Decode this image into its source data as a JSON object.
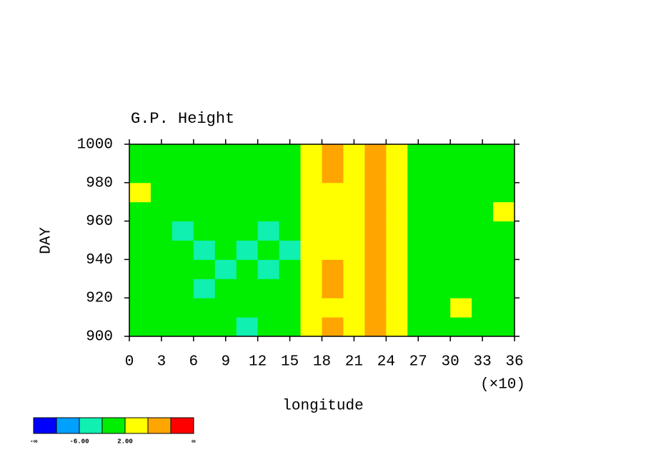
{
  "chart_data": {
    "type": "heatmap",
    "title": "G.P. Height",
    "x_label": "longitude",
    "y_label": "DAY",
    "x_scale_label": "(×10)",
    "xlim": [
      0,
      360
    ],
    "ylim": [
      900,
      1000
    ],
    "xticks": [
      {
        "value": 0,
        "label": "0"
      },
      {
        "value": 30,
        "label": "3"
      },
      {
        "value": 60,
        "label": "6"
      },
      {
        "value": 90,
        "label": "9"
      },
      {
        "value": 120,
        "label": "12"
      },
      {
        "value": 150,
        "label": "15"
      },
      {
        "value": 180,
        "label": "18"
      },
      {
        "value": 210,
        "label": "21"
      },
      {
        "value": 240,
        "label": "24"
      },
      {
        "value": 270,
        "label": "27"
      },
      {
        "value": 300,
        "label": "30"
      },
      {
        "value": 330,
        "label": "33"
      },
      {
        "value": 360,
        "label": "36"
      }
    ],
    "yticks": [
      900,
      920,
      940,
      960,
      980,
      1000
    ],
    "x": [
      10,
      30,
      50,
      70,
      90,
      110,
      130,
      150,
      170,
      190,
      210,
      230,
      250,
      270,
      290,
      310,
      330,
      350
    ],
    "y": [
      905,
      915,
      925,
      935,
      945,
      955,
      965,
      975,
      985,
      995
    ],
    "z": [
      [
        1,
        0,
        -1,
        -2,
        -1,
        -3,
        -2,
        -1,
        3,
        7,
        3,
        8,
        4,
        1,
        0,
        1,
        0,
        -1
      ],
      [
        0,
        1,
        -2,
        -1,
        0,
        -2,
        -1,
        0,
        2,
        5,
        3,
        7,
        3,
        0,
        1,
        2,
        0,
        1
      ],
      [
        -1,
        0,
        -1,
        -3,
        -2,
        -1,
        -2,
        -1,
        3,
        6,
        2,
        8,
        2,
        1,
        0,
        -1,
        1,
        0
      ],
      [
        0,
        -1,
        -2,
        -1,
        -3,
        -2,
        -4,
        -2,
        2,
        7,
        3,
        7,
        3,
        0,
        -1,
        0,
        -1,
        0
      ],
      [
        -1,
        -2,
        -1,
        -3,
        -2,
        -3,
        -2,
        -3,
        3,
        5,
        2,
        8,
        2,
        -1,
        0,
        -1,
        0,
        1
      ],
      [
        0,
        -1,
        -3,
        -2,
        -1,
        -2,
        -3,
        -1,
        2,
        5,
        3,
        7,
        2,
        0,
        1,
        0,
        -1,
        0
      ],
      [
        1,
        0,
        -1,
        -2,
        -1,
        -1,
        -2,
        0,
        3,
        4,
        3,
        6,
        3,
        1,
        0,
        1,
        0,
        2
      ],
      [
        2,
        1,
        0,
        -1,
        -2,
        -1,
        -1,
        0,
        2,
        5,
        3,
        6,
        2,
        1,
        0,
        1,
        1,
        0
      ],
      [
        0,
        1,
        -1,
        -2,
        -1,
        -2,
        -1,
        -1,
        3,
        6,
        4,
        7,
        3,
        0,
        1,
        0,
        -1,
        1
      ],
      [
        1,
        0,
        -1,
        -1,
        -2,
        -1,
        -2,
        0,
        4,
        8,
        3,
        6,
        2,
        0,
        1,
        0,
        1,
        0
      ]
    ],
    "colorbar": {
      "levels": [
        -10,
        -6,
        -2,
        2,
        6,
        10
      ],
      "colors": [
        "#0000ff",
        "#00a0ff",
        "#10f0b0",
        "#00ee00",
        "#ffff00",
        "#ffa500",
        "#ff0000"
      ],
      "ticks": [
        {
          "value": -6,
          "label": "-6.00"
        },
        {
          "value": 2,
          "label": "2.00"
        }
      ],
      "end_labels": [
        "-∞",
        "∞"
      ]
    }
  }
}
